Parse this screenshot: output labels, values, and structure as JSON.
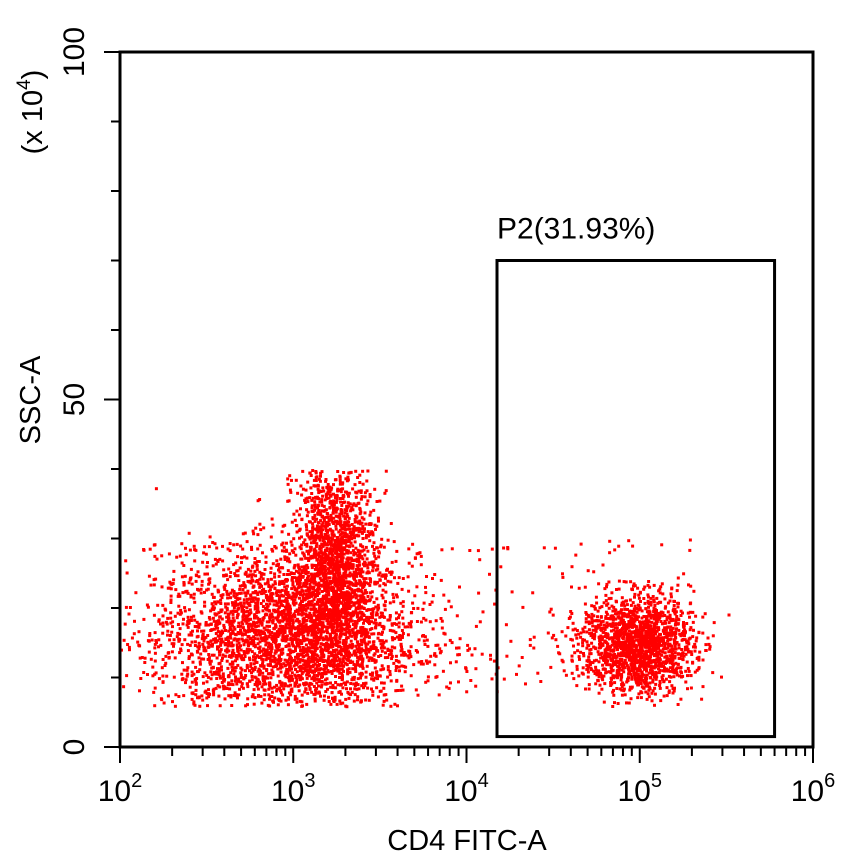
{
  "chart_data": {
    "type": "scatter",
    "title": "",
    "xlabel": "CD4 FITC-A",
    "ylabel": "SSC-A",
    "y_multiplier": "(x 10",
    "y_multiplier_exp": "4",
    "y_multiplier_close": ")",
    "xscale": "log",
    "xlim": [
      100,
      1000000
    ],
    "ylim": [
      0,
      100
    ],
    "grid": false,
    "legend": "none",
    "x_ticks": [
      {
        "base": "10",
        "exp": "2",
        "value": 100
      },
      {
        "base": "10",
        "exp": "3",
        "value": 1000
      },
      {
        "base": "10",
        "exp": "4",
        "value": 10000
      },
      {
        "base": "10",
        "exp": "5",
        "value": 100000
      },
      {
        "base": "10",
        "exp": "6",
        "value": 1000000
      }
    ],
    "y_ticks": [
      {
        "label": "0",
        "value": 0
      },
      {
        "label": "50",
        "value": 50
      },
      {
        "label": "100",
        "value": 100
      }
    ],
    "point_color": "#ff0000",
    "populations": [
      {
        "name": "",
        "x_center": 900,
        "x_log_sd": 0.38,
        "y_center": 16,
        "y_sd": 6,
        "y_min": 6,
        "y_max": 40
      },
      {
        "name": "",
        "x_center": 1700,
        "x_log_sd": 0.12,
        "y_center": 26,
        "y_sd": 8,
        "y_min": 8,
        "y_max": 40
      },
      {
        "name": "",
        "x_center": 95000,
        "x_log_sd": 0.16,
        "y_center": 15,
        "y_sd": 3.5,
        "y_min": 6,
        "y_max": 36
      }
    ],
    "gates": [
      {
        "label": "P2(31.93%)",
        "x_range": [
          15000,
          600000
        ],
        "y_range": [
          1.5,
          70
        ]
      }
    ]
  }
}
